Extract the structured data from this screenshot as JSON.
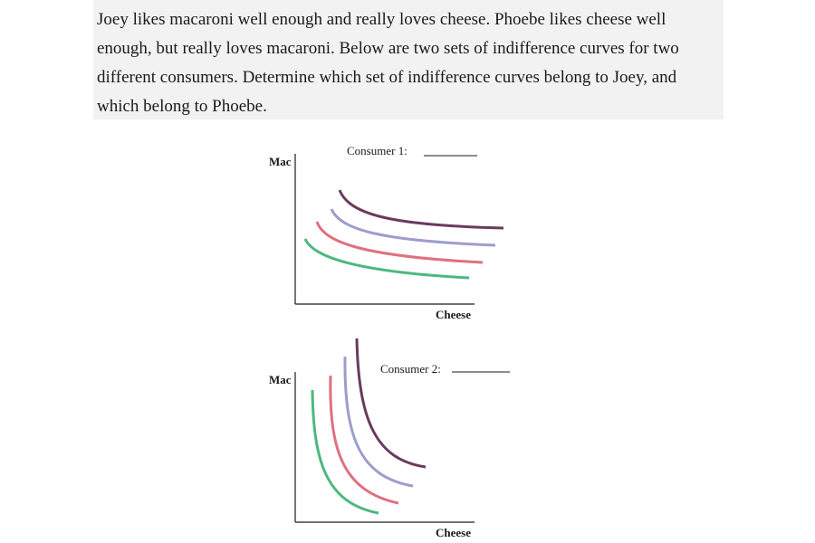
{
  "question": {
    "text": "Joey likes macaroni well enough and really loves cheese. Phoebe likes cheese well enough, but really loves macaroni. Below are two sets of indifference curves for two different consumers. Determine which set of indifference curves belong to Joey, and which belong to Phoebe."
  },
  "graphs": [
    {
      "title": "Consumer 1:",
      "y_axis_label": "Mac",
      "x_axis_label": "Cheese",
      "curve_colors": [
        "#4db87e",
        "#e0707e",
        "#9d9dcc",
        "#6b3a5e"
      ]
    },
    {
      "title": "Consumer 2:",
      "y_axis_label": "Mac",
      "x_axis_label": "Cheese",
      "curve_colors": [
        "#4db87e",
        "#e0707e",
        "#9d9dcc",
        "#6b3a5e"
      ]
    }
  ]
}
